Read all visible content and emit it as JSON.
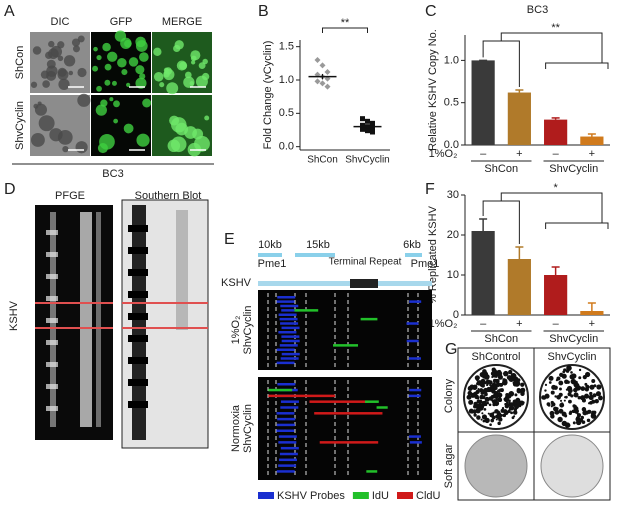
{
  "panel_labels": [
    "A",
    "B",
    "C",
    "D",
    "E",
    "F",
    "G"
  ],
  "panel_a": {
    "columns": [
      "DIC",
      "GFP",
      "MERGE"
    ],
    "rows": [
      "ShCon",
      "ShvCyclin"
    ],
    "cell_line": "BC3"
  },
  "panel_d": {
    "lanes": [
      "PFGE",
      "Southern Blot"
    ],
    "band_label": "KSHV"
  },
  "panel_e": {
    "segments": [
      "10kb",
      "15kb",
      "6kb"
    ],
    "sites": [
      "Pme1",
      "Pme1"
    ],
    "repeat": "Terminal Repeat",
    "genome": "KSHV",
    "conditions": [
      [
        "1%O₂",
        "ShvCyclin"
      ],
      [
        "Normoxia",
        "ShvCyclin"
      ]
    ],
    "legend": [
      {
        "name": "KSHV Probes",
        "color": "#1a2fd0"
      },
      {
        "name": "IdU",
        "color": "#22c02a"
      },
      {
        "name": "CldU",
        "color": "#d01a1a"
      }
    ]
  },
  "panel_g": {
    "columns": [
      "ShControl",
      "ShvCyclin"
    ],
    "rows": [
      "Colony",
      "Soft agar"
    ]
  },
  "chart_data": [
    {
      "type": "dot",
      "categories": [
        "ShCon",
        "ShvCyclin"
      ],
      "ylabel": "Fold Change (vCyclin)",
      "ylim": [
        -0.05,
        1.6
      ],
      "yticks": [
        {
          "value": 0,
          "label": "0.0"
        },
        {
          "value": 0.5,
          "label": "0.5"
        },
        {
          "value": 1,
          "label": "1.0"
        },
        {
          "value": 1.5,
          "label": "1.5"
        }
      ],
      "points": [
        [
          1.3,
          1.22,
          1.12,
          1.08,
          1.05,
          1.02,
          0.98,
          0.95,
          0.9
        ],
        [
          0.42,
          0.38,
          0.35,
          0.32,
          0.3,
          0.28,
          0.26,
          0.24,
          0.22
        ]
      ],
      "means": [
        1.05,
        0.3
      ],
      "errors": [
        0.04,
        0.02
      ],
      "colors": [
        "#999999",
        "#111111"
      ],
      "annotation": "**"
    },
    {
      "type": "bar",
      "title": "BC3",
      "ylabel": "Relative KSHV Copy No.",
      "condition": "1%O₂",
      "categories": [
        "–",
        "+",
        "–",
        "+"
      ],
      "groups": [
        "ShCon",
        "ShvCyclin"
      ],
      "values": [
        1.0,
        0.62,
        0.3,
        0.1
      ],
      "errors": [
        0,
        0.03,
        0.02,
        0.03
      ],
      "colors": [
        "#3a3a3a",
        "#b07a2a",
        "#b01c1c",
        "#d07a1c"
      ],
      "ylim": [
        0,
        1.3
      ],
      "yticks": [
        {
          "value": 0,
          "label": "0.0"
        },
        {
          "value": 0.5,
          "label": "0.5"
        },
        {
          "value": 1,
          "label": "1.0"
        }
      ],
      "annotation": "**"
    },
    {
      "type": "bar",
      "ylabel": "% Replicated KSHV",
      "condition": "1%O₂",
      "categories": [
        "–",
        "+",
        "–",
        "+"
      ],
      "groups": [
        "ShCon",
        "ShvCyclin"
      ],
      "values": [
        21,
        14,
        10,
        1
      ],
      "errors": [
        3,
        3,
        2,
        2
      ],
      "colors": [
        "#3a3a3a",
        "#b07a2a",
        "#b01c1c",
        "#d07a1c"
      ],
      "ylim": [
        0,
        30
      ],
      "yticks": [
        0,
        10,
        20,
        30
      ],
      "annotation": "*"
    }
  ]
}
